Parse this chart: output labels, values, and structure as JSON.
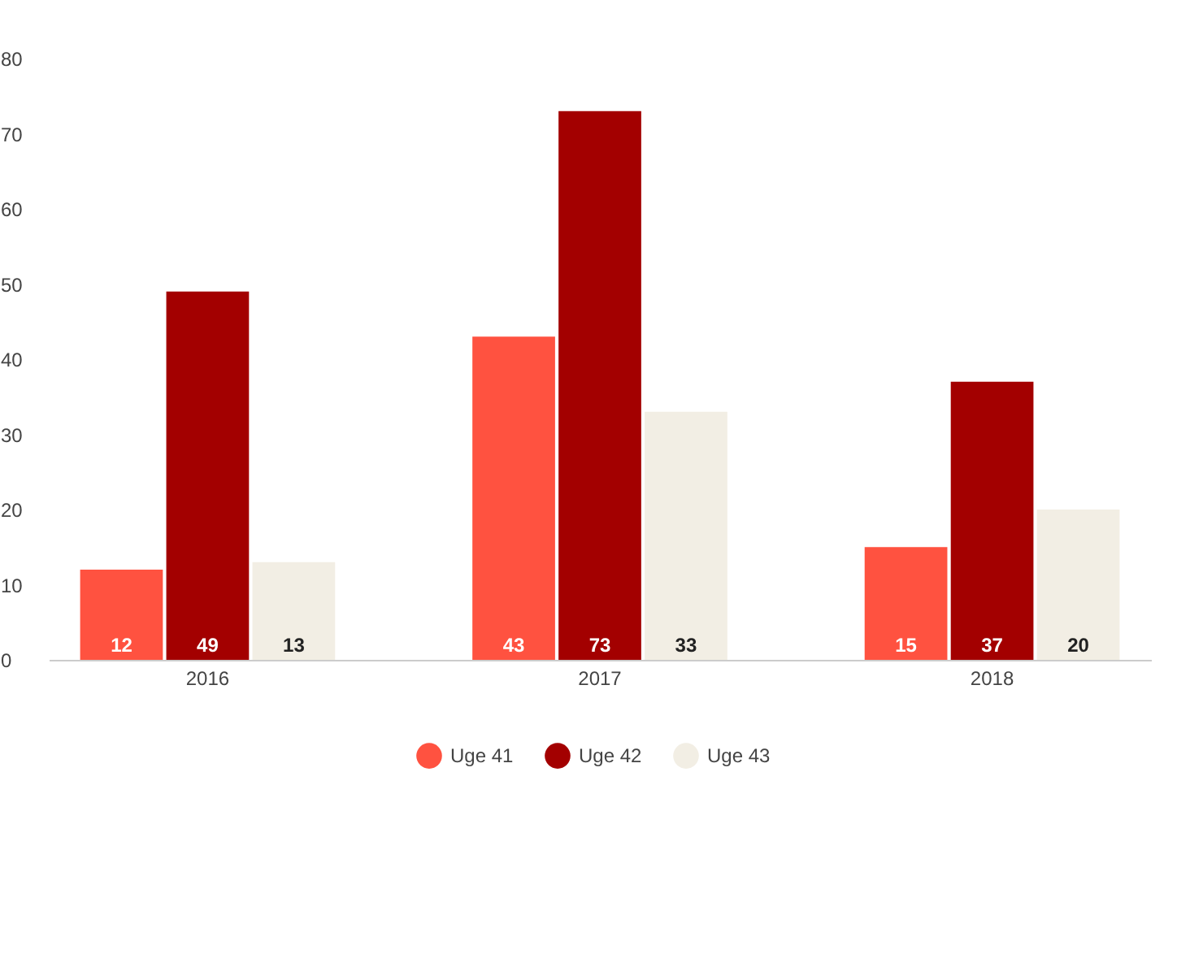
{
  "chart_data": {
    "type": "bar",
    "categories": [
      "2016",
      "2017",
      "2018"
    ],
    "series": [
      {
        "name": "Uge 41",
        "color": "#ff5240",
        "values": [
          12,
          43,
          15
        ]
      },
      {
        "name": "Uge 42",
        "color": "#a30000",
        "values": [
          49,
          73,
          37
        ]
      },
      {
        "name": "Uge 43",
        "color": "#f2eee4",
        "values": [
          13,
          33,
          20
        ]
      }
    ],
    "ylim": [
      0,
      80
    ],
    "yticks": [
      0,
      10,
      20,
      30,
      40,
      50,
      60,
      70,
      80
    ],
    "grid": false,
    "legend": "bottom",
    "data_labels": true
  }
}
